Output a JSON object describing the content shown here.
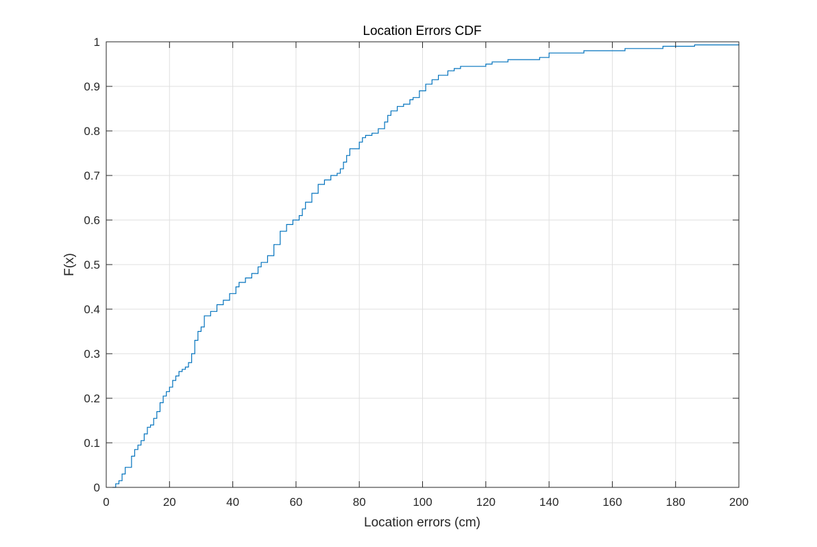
{
  "chart_data": {
    "type": "line",
    "title": "Location Errors CDF",
    "xlabel": "Location errors (cm)",
    "ylabel": "F(x)",
    "xlim": [
      0,
      200
    ],
    "ylim": [
      0,
      1
    ],
    "xticks": [
      0,
      20,
      40,
      60,
      80,
      100,
      120,
      140,
      160,
      180,
      200
    ],
    "yticks": [
      0,
      0.1,
      0.2,
      0.3,
      0.4,
      0.5,
      0.6,
      0.7,
      0.8,
      0.9,
      1
    ],
    "xtick_labels": [
      "0",
      "20",
      "40",
      "60",
      "80",
      "100",
      "120",
      "140",
      "160",
      "180",
      "200"
    ],
    "ytick_labels": [
      "0",
      "0.1",
      "0.2",
      "0.3",
      "0.4",
      "0.5",
      "0.6",
      "0.7",
      "0.8",
      "0.9",
      "1"
    ],
    "grid": true,
    "step": true,
    "series": [
      {
        "color": "#0072BD",
        "x": [
          2,
          3,
          4,
          5,
          6,
          8,
          9,
          10,
          11,
          12,
          13,
          14,
          15,
          16,
          17,
          18,
          19,
          20,
          21,
          22,
          23,
          24,
          25,
          26,
          27,
          28,
          29,
          30,
          31,
          33,
          35,
          37,
          39,
          41,
          42,
          44,
          46,
          48,
          49,
          51,
          53,
          55,
          57,
          59,
          61,
          62,
          63,
          65,
          67,
          69,
          71,
          73,
          74,
          75,
          76,
          77,
          80,
          81,
          82,
          84,
          86,
          88,
          89,
          90,
          92,
          94,
          96,
          97,
          99,
          101,
          103,
          105,
          108,
          110,
          112,
          120,
          122,
          127,
          137,
          140,
          151,
          164,
          176,
          186,
          200
        ],
        "y": [
          0.0,
          0.008,
          0.015,
          0.03,
          0.045,
          0.07,
          0.085,
          0.095,
          0.105,
          0.12,
          0.135,
          0.14,
          0.155,
          0.17,
          0.19,
          0.205,
          0.215,
          0.225,
          0.24,
          0.25,
          0.26,
          0.265,
          0.27,
          0.28,
          0.3,
          0.33,
          0.35,
          0.36,
          0.385,
          0.395,
          0.41,
          0.42,
          0.435,
          0.45,
          0.46,
          0.47,
          0.48,
          0.495,
          0.505,
          0.52,
          0.545,
          0.575,
          0.59,
          0.6,
          0.61,
          0.625,
          0.64,
          0.66,
          0.68,
          0.69,
          0.7,
          0.705,
          0.715,
          0.73,
          0.745,
          0.76,
          0.775,
          0.785,
          0.79,
          0.795,
          0.805,
          0.82,
          0.835,
          0.845,
          0.855,
          0.86,
          0.87,
          0.875,
          0.89,
          0.905,
          0.915,
          0.925,
          0.935,
          0.94,
          0.945,
          0.95,
          0.955,
          0.96,
          0.965,
          0.975,
          0.98,
          0.985,
          0.99,
          0.993,
          0.995
        ]
      }
    ]
  }
}
